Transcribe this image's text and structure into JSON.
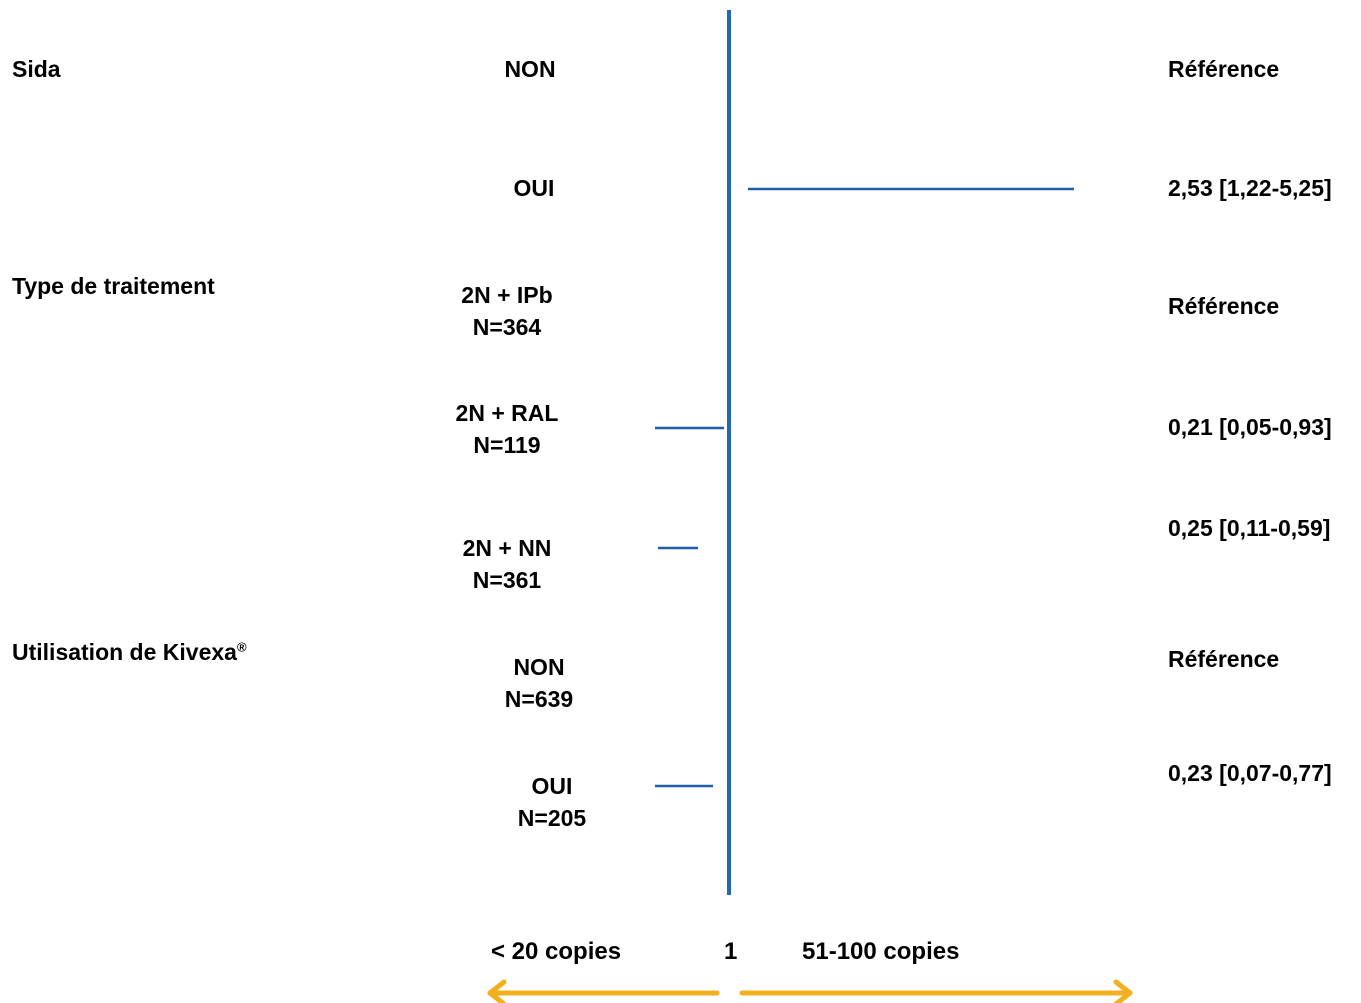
{
  "chart_data": {
    "type": "forest",
    "reference_value": 1,
    "x_scale": "log",
    "rows": [
      {
        "group": "Sida",
        "category": [
          "NON"
        ],
        "or_text": "Référence",
        "or": 1,
        "ci": null
      },
      {
        "group": "",
        "category": [
          "OUI"
        ],
        "or_text": "2,53 [1,22-5,25]",
        "or": 2.53,
        "ci": [
          1.22,
          5.25
        ]
      },
      {
        "group": "Type de traitement",
        "category": [
          "2N + IPb",
          "N=364"
        ],
        "or_text": "Référence",
        "or": 1,
        "ci": null
      },
      {
        "group": "",
        "category": [
          "2N + RAL",
          "N=119"
        ],
        "or_text": "0,21 [0,05-0,93]",
        "or": 0.21,
        "ci": [
          0.05,
          0.93
        ]
      },
      {
        "group": "",
        "category": [
          "2N + NN",
          "N=361"
        ],
        "or_text": "0,25 [0,11-0,59]",
        "or": 0.25,
        "ci": [
          0.11,
          0.59
        ]
      },
      {
        "group": "Utilisation de Kivexa",
        "group_sup": "®",
        "category": [
          "NON",
          "N=639"
        ],
        "or_text": "Référence",
        "or": 1,
        "ci": null
      },
      {
        "group": "",
        "category": [
          "OUI",
          "N=205"
        ],
        "or_text": "0,23 [0,07-0,77]",
        "or": 0.23,
        "ci": [
          0.07,
          0.77
        ]
      }
    ],
    "axis_labels": {
      "left": "< 20 copies",
      "center": "1",
      "right": "51-100 copies"
    },
    "colors": {
      "lines": "#1f5fa8",
      "reference_line": "#1f6ab4",
      "arrows": "#f2b01e"
    }
  }
}
